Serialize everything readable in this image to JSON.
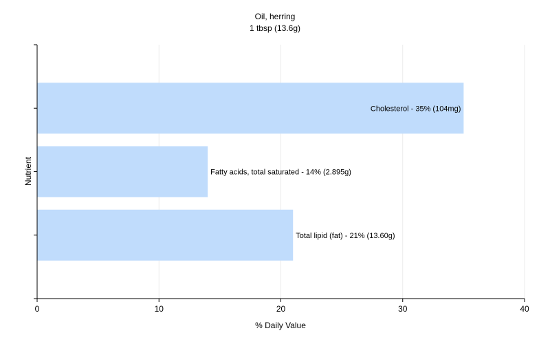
{
  "chart_data": {
    "type": "bar",
    "orientation": "horizontal",
    "title": "Oil, herring",
    "subtitle": "1 tbsp (13.6g)",
    "xlabel": "% Daily Value",
    "ylabel": "Nutrient",
    "xlim": [
      0,
      40
    ],
    "xticks": [
      "0",
      "10",
      "20",
      "30",
      "40"
    ],
    "grid": "vertical",
    "bar_color": "#c0dcfc",
    "categories": [
      "Cholesterol",
      "Fatty acids, total saturated",
      "Total lipid (fat)"
    ],
    "values": [
      35,
      14,
      21
    ],
    "bar_labels": [
      "Cholesterol - 35% (104mg)",
      "Fatty acids, total saturated - 14% (2.895g)",
      "Total lipid (fat) - 21% (13.60g)"
    ]
  }
}
